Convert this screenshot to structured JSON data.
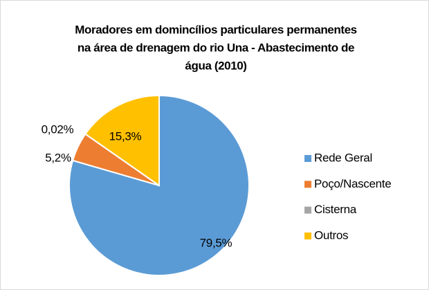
{
  "chart_data": {
    "type": "pie",
    "title": [
      "Moradores em domincílios particulares permanentes",
      "na área de drenagem do rio Una - Abastecimento de",
      "água (2010)"
    ],
    "categories": [
      "Rede Geral",
      "Poço/Nascente",
      "Cisterna",
      "Outros"
    ],
    "values": [
      79.5,
      5.2,
      0.02,
      15.3
    ],
    "value_labels": [
      "79,5%",
      "5,2%",
      "0,02%",
      "15,3%"
    ],
    "colors": [
      "#5b9bd5",
      "#ed7d31",
      "#a5a5a5",
      "#ffc000"
    ],
    "legend": "right"
  }
}
